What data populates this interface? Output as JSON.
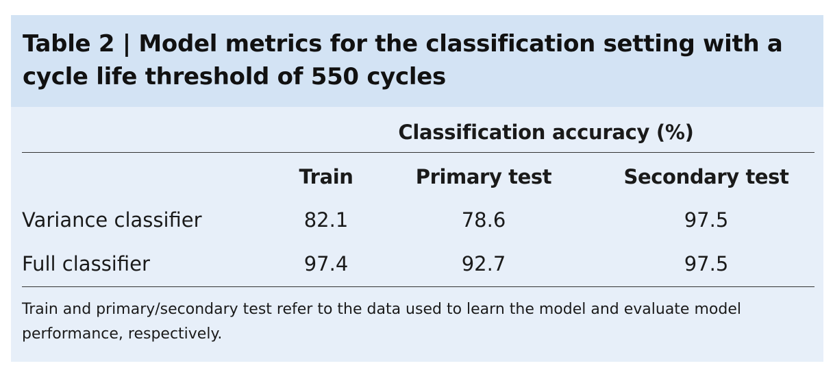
{
  "table": {
    "title": "Table 2 | Model metrics for the classification setting with a cycle life threshold of 550 cycles",
    "spanner_header": "Classification accuracy (%)",
    "columns": [
      "Train",
      "Primary test",
      "Secondary test"
    ],
    "rows": [
      {
        "label": "Variance classifier",
        "values": [
          "82.1",
          "78.6",
          "97.5"
        ]
      },
      {
        "label": "Full classifier",
        "values": [
          "97.4",
          "92.7",
          "97.5"
        ]
      }
    ],
    "footnote": "Train and primary/secondary test refer to the data used to learn the model and evaluate model performance, respectively."
  },
  "colors": {
    "title_band": "#d3e3f4",
    "table_body": "#e7eff9",
    "rule": "#333333"
  }
}
